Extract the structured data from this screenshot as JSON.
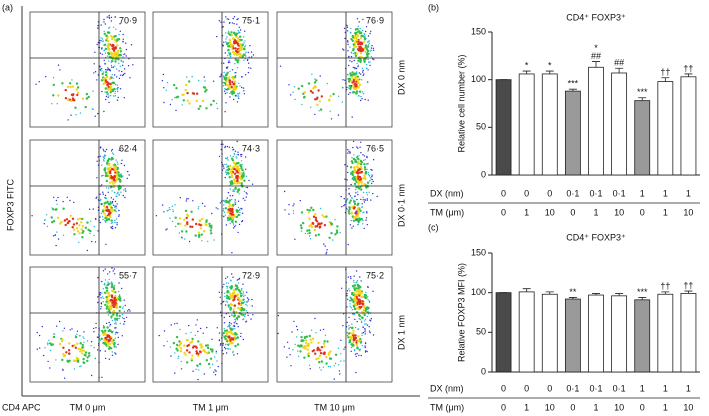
{
  "flow_panel": {
    "panel_label": "(a)",
    "y_label": "FOXP3 FITC",
    "x_label": "CD4 APC",
    "columns": [
      "TM 0 μm",
      "TM 1 μm",
      "TM 10 μm"
    ],
    "rows": [
      "DX 0 nm",
      "DX 0·1 nm",
      "DX 1 nm"
    ],
    "percentages": [
      [
        "70·9",
        "75·1",
        "76·9"
      ],
      [
        "62·4",
        "74·3",
        "76·5"
      ],
      [
        "55·7",
        "72·9",
        "75·2"
      ]
    ]
  },
  "chart_data": [
    {
      "type": "bar",
      "panel_label": "(b)",
      "title": "CD4⁺ FOXP3⁺",
      "y_label": "Relative cell number (%)",
      "ylim": [
        0,
        150
      ],
      "yticks": [
        0,
        50,
        100,
        150
      ],
      "values": [
        100,
        106,
        106,
        88,
        113,
        107,
        78,
        98,
        103
      ],
      "errors": [
        0,
        3,
        3,
        2,
        6,
        5,
        3,
        4,
        3
      ],
      "colors": [
        "#4a4a4a",
        "#ffffff",
        "#ffffff",
        "#9a9a9a",
        "#ffffff",
        "#ffffff",
        "#9a9a9a",
        "#ffffff",
        "#ffffff"
      ],
      "annotations": [
        null,
        [
          "*"
        ],
        [
          "*"
        ],
        [
          "***"
        ],
        [
          "*",
          "##"
        ],
        [
          "##"
        ],
        [
          "***"
        ],
        [
          "††"
        ],
        [
          "††"
        ]
      ],
      "table": [
        {
          "label": "DX (nm)",
          "cells": [
            "0",
            "0",
            "0",
            "0·1",
            "0·1",
            "0·1",
            "1",
            "1",
            "1"
          ]
        },
        {
          "label": "TM (μm)",
          "cells": [
            "0",
            "1",
            "10",
            "0",
            "1",
            "10",
            "0",
            "1",
            "10"
          ]
        }
      ]
    },
    {
      "type": "bar",
      "panel_label": "(c)",
      "title": "CD4⁺ FOXP3⁺",
      "y_label": "Relative FOXP3 MFI (%)",
      "ylim": [
        0,
        150
      ],
      "yticks": [
        0,
        50,
        100,
        150
      ],
      "values": [
        100,
        101,
        98,
        92,
        97,
        96,
        91,
        98,
        99
      ],
      "errors": [
        0,
        4,
        3,
        2,
        2,
        3,
        3,
        3,
        3
      ],
      "colors": [
        "#4a4a4a",
        "#ffffff",
        "#ffffff",
        "#9a9a9a",
        "#ffffff",
        "#ffffff",
        "#9a9a9a",
        "#ffffff",
        "#ffffff"
      ],
      "annotations": [
        null,
        null,
        null,
        [
          "**"
        ],
        null,
        null,
        [
          "***"
        ],
        [
          "††"
        ],
        [
          "††"
        ]
      ],
      "table": [
        {
          "label": "DX (nm)",
          "cells": [
            "0",
            "0",
            "0",
            "0·1",
            "0·1",
            "0·1",
            "1",
            "1",
            "1"
          ]
        },
        {
          "label": "TM (μm)",
          "cells": [
            "0",
            "1",
            "10",
            "0",
            "1",
            "10",
            "0",
            "1",
            "10"
          ]
        }
      ]
    }
  ]
}
